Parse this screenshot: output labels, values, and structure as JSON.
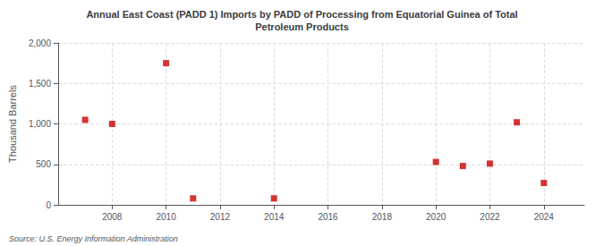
{
  "chart_data": {
    "type": "scatter",
    "title": "Annual East Coast (PADD 1) Imports by PADD of Processing from Equatorial Guinea of Total\nPetroleum Products",
    "ylabel": "Thousand Barrels",
    "source": "Source: U.S. Energy Information Administration",
    "x": [
      2007,
      2008,
      2010,
      2011,
      2014,
      2020,
      2021,
      2022,
      2023,
      2024
    ],
    "values": [
      1050,
      1000,
      1750,
      80,
      80,
      530,
      480,
      510,
      1020,
      270
    ],
    "color": "#cc0000",
    "marker": "square",
    "xlim": [
      2006,
      2025.5
    ],
    "xticks": [
      2008,
      2010,
      2012,
      2014,
      2016,
      2018,
      2020,
      2022,
      2024
    ],
    "ylim": [
      0,
      2000
    ],
    "yticks": [
      0,
      500,
      {
        "value": 1000,
        "label": "1,000"
      },
      {
        "value": 1500,
        "label": "1,500"
      },
      {
        "value": 2000,
        "label": "2,000"
      }
    ],
    "grid": true
  }
}
